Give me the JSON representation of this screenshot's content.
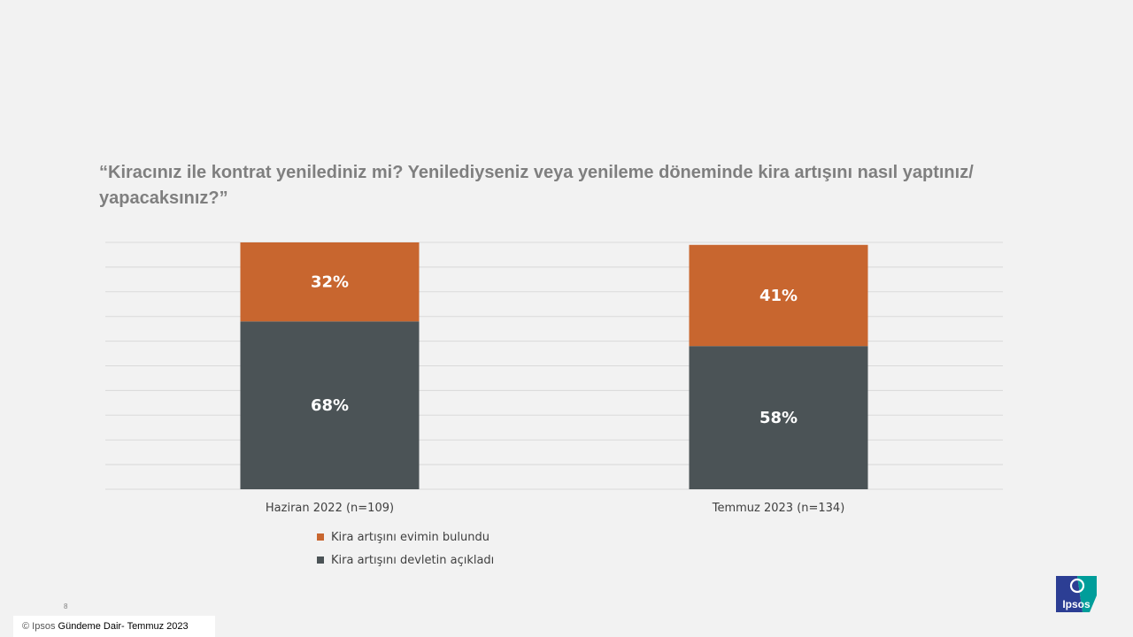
{
  "title": "“Kiracınız ile kontrat yenilediniz mi? Yenilediyseniz veya yenileme döneminde kira artışını nasıl yaptınız/ yapacaksınız?”",
  "chart_data": {
    "type": "bar",
    "stacked": true,
    "categories": [
      "Haziran 2022 (n=109)",
      "Temmuz 2023 (n=134)"
    ],
    "series": [
      {
        "name": "Kira artışını devletin açıkladı",
        "values": [
          68,
          58
        ],
        "labels": [
          "68%",
          "58%"
        ],
        "color": "#4b5356"
      },
      {
        "name": "Kira artışını evimin bulundu",
        "values": [
          32,
          41
        ],
        "labels": [
          "32%",
          "41%"
        ],
        "color": "#c8662f"
      }
    ],
    "ylim": [
      0,
      100
    ],
    "grid": true,
    "legend_position": "bottom"
  },
  "legend": [
    {
      "label": "Kira artışını evimin bulundu",
      "color": "#c8662f"
    },
    {
      "label": "Kira artışını devletin açıkladı",
      "color": "#4b5356"
    }
  ],
  "page_number": "8",
  "footer": {
    "copyright": "© Ipsos",
    "text": "Gündeme Dair- Temmuz 2023"
  },
  "logo": {
    "text": "Ipsos",
    "colors": [
      "#2c3e94",
      "#009d9a"
    ]
  }
}
